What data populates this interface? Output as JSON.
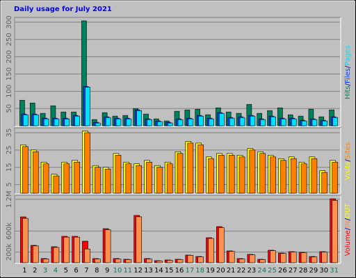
{
  "chart_data": [
    {
      "type": "bar",
      "title": "Daily usage for July 2021",
      "title_color": "#0000ff",
      "ylim": [
        0,
        310
      ],
      "yticks": [
        50,
        100,
        150,
        200,
        250,
        300
      ],
      "grid": true,
      "legend_separator": "/",
      "series": [
        {
          "name": "Hits",
          "color": "#00805c",
          "values": [
            74,
            66,
            36,
            58,
            40,
            40,
            304,
            18,
            38,
            28,
            30,
            50,
            34,
            20,
            14,
            42,
            46,
            48,
            32,
            52,
            40,
            36,
            62,
            36,
            44,
            52,
            32,
            28,
            48,
            26,
            46
          ]
        },
        {
          "name": "Files",
          "color": "#0040ff",
          "values": [
            34,
            34,
            22,
            22,
            22,
            30,
            114,
            10,
            26,
            22,
            22,
            46,
            20,
            14,
            10,
            20,
            22,
            30,
            22,
            38,
            24,
            26,
            30,
            20,
            28,
            22,
            22,
            16,
            20,
            16,
            26
          ]
        },
        {
          "name": "Pages",
          "color": "#00e0ff",
          "values": [
            32,
            32,
            20,
            20,
            20,
            28,
            112,
            8,
            24,
            20,
            20,
            44,
            18,
            12,
            8,
            18,
            20,
            28,
            20,
            36,
            22,
            24,
            28,
            18,
            26,
            20,
            20,
            14,
            18,
            14,
            24
          ]
        }
      ]
    },
    {
      "type": "bar",
      "ylim": [
        0,
        37
      ],
      "yticks": [
        5,
        15,
        25,
        35
      ],
      "grid": true,
      "legend_separator": "/",
      "series": [
        {
          "name": "Visits",
          "color": "#ffff00",
          "values": [
            28,
            25,
            18,
            11,
            18,
            19,
            36,
            16,
            15,
            23,
            18,
            17,
            19,
            16,
            18,
            24,
            30,
            29,
            21,
            23,
            23,
            22,
            26,
            24,
            22,
            20,
            21,
            18,
            21,
            13,
            19
          ]
        },
        {
          "name": "Sites",
          "color": "#ff8000",
          "values": [
            27,
            24,
            17,
            10,
            17,
            18,
            35,
            15,
            14,
            22,
            17,
            16,
            18,
            15,
            17,
            23,
            29,
            28,
            20,
            22,
            22,
            21,
            25,
            23,
            21,
            19,
            20,
            17,
            20,
            12,
            18
          ]
        }
      ]
    },
    {
      "type": "bar",
      "ylim": [
        0,
        1250000
      ],
      "yticks": [
        {
          "value": 200000,
          "label": "200k"
        },
        {
          "value": 600000,
          "label": "600k"
        },
        {
          "value": 1200000,
          "label": "1.2M"
        }
      ],
      "grid": true,
      "legend_separator": "/",
      "categories": [
        "1",
        "2",
        "3",
        "4",
        "5",
        "6",
        "7",
        "8",
        "9",
        "10",
        "11",
        "12",
        "13",
        "14",
        "15",
        "16",
        "17",
        "18",
        "19",
        "20",
        "21",
        "22",
        "23",
        "24",
        "25",
        "26",
        "27",
        "28",
        "29",
        "30",
        "31"
      ],
      "weekend": [
        false,
        false,
        true,
        true,
        false,
        false,
        false,
        false,
        false,
        true,
        true,
        false,
        false,
        false,
        false,
        false,
        true,
        true,
        false,
        false,
        false,
        false,
        false,
        true,
        true,
        false,
        false,
        false,
        false,
        false,
        true
      ],
      "weekday_color": "#000000",
      "weekend_color": "#00805c",
      "series": [
        {
          "name": "Volume",
          "color": "#ff0000",
          "values": [
            868000,
            329000,
            79000,
            303000,
            500000,
            500000,
            408000,
            79000,
            645000,
            79000,
            66000,
            895000,
            79000,
            40000,
            53000,
            66000,
            145000,
            118000,
            474000,
            684000,
            224000,
            79000,
            158000,
            66000,
            237000,
            184000,
            210000,
            197000,
            118000,
            210000,
            1210000
          ]
        },
        {
          "name": "IN",
          "color": "#ff9050",
          "values": [
            840000,
            318000,
            70000,
            290000,
            485000,
            485000,
            260000,
            70000,
            625000,
            70000,
            60000,
            870000,
            70000,
            35000,
            47000,
            60000,
            140000,
            110000,
            460000,
            665000,
            215000,
            70000,
            150000,
            60000,
            228000,
            176000,
            202000,
            190000,
            110000,
            202000,
            1180000
          ]
        }
      ],
      "extra_legend": {
        "name": "OUT",
        "color": "#ffff00"
      }
    }
  ]
}
